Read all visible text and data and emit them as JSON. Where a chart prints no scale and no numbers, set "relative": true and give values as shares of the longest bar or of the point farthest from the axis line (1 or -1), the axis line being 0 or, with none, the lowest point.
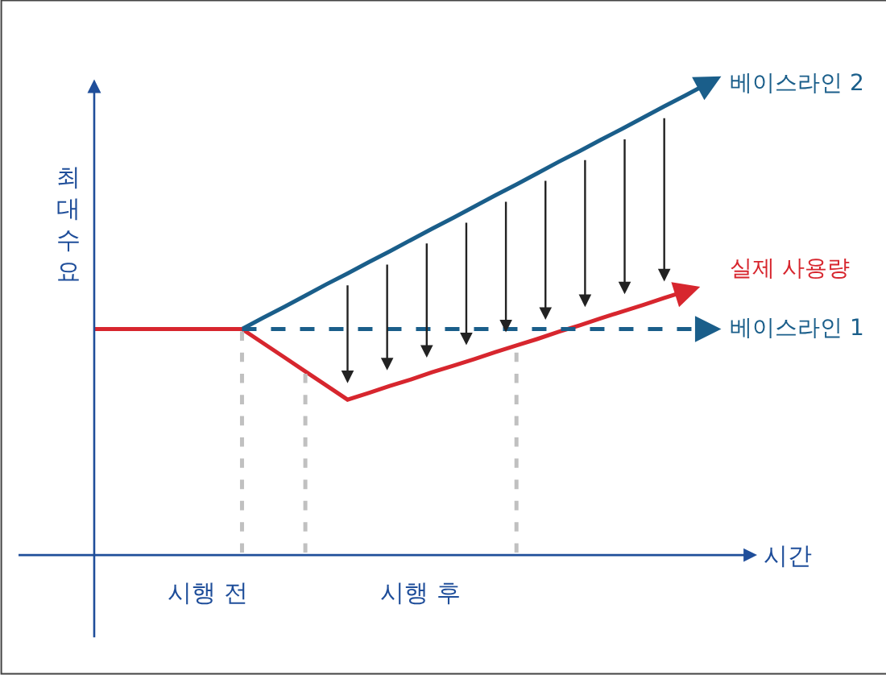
{
  "chart_data": {
    "type": "line",
    "relative": true,
    "xlabel": "시간",
    "ylabel": "최대수요",
    "categories": [
      null,
      null,
      null,
      null,
      null,
      null,
      null,
      null,
      null,
      null,
      null,
      null,
      null,
      null,
      null,
      null,
      null,
      null,
      null,
      null,
      null,
      null,
      null,
      null,
      null,
      null,
      null,
      null,
      null,
      null
    ],
    "legend": "right",
    "marker": "none",
    "series": [
      {
        "name": "베이스라인 2",
        "color": "#1a5e8a",
        "line_style": "solid",
        "values": [
          null,
          null,
          null,
          null,
          null,
          null,
          null,
          0.48,
          0.504,
          0.527,
          0.551,
          0.575,
          0.598,
          0.622,
          0.645,
          0.669,
          0.693,
          0.716,
          0.74,
          0.764,
          0.787,
          0.811,
          0.835,
          0.858,
          0.882,
          0.905,
          0.929,
          0.953,
          0.976,
          1
        ]
      },
      {
        "name": "실제 사용량",
        "color": "#d7262e",
        "line_style": "solid",
        "values": [
          0.48,
          0.48,
          0.48,
          0.48,
          0.48,
          0.48,
          0.48,
          0.48,
          0.45,
          0.42,
          0.39,
          0.36,
          0.33,
          0.344,
          0.359,
          0.373,
          0.388,
          0.402,
          0.416,
          0.431,
          0.445,
          0.459,
          0.474,
          0.488,
          0.503,
          0.517,
          0.531,
          0.546,
          0.56,
          null
        ]
      },
      {
        "name": "베이스라인 1",
        "color": "#1a5e8a",
        "line_style": "dashed",
        "values": [
          null,
          null,
          null,
          null,
          null,
          null,
          null,
          0.48,
          0.48,
          0.48,
          0.48,
          0.48,
          0.48,
          0.48,
          0.48,
          0.48,
          0.48,
          0.48,
          0.48,
          0.48,
          0.48,
          0.48,
          0.48,
          0.48,
          0.48,
          0.48,
          0.48,
          0.48,
          0.48,
          0.48
        ]
      }
    ],
    "annotations": [
      "시행 전",
      "시행 후"
    ]
  }
}
